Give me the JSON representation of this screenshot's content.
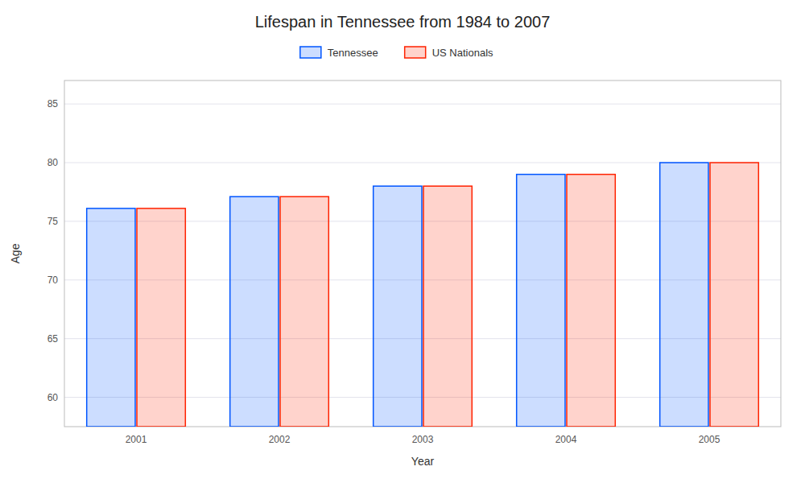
{
  "chart_data": {
    "type": "bar",
    "title": "Lifespan in Tennessee from 1984 to 2007",
    "x_label": "Year",
    "y_label": "Age",
    "categories": [
      "2001",
      "2002",
      "2003",
      "2004",
      "2005"
    ],
    "series": [
      {
        "name": "Tennessee",
        "color": "#0055ff",
        "values": [
          76.1,
          77.1,
          78.0,
          79.0,
          80.0
        ]
      },
      {
        "name": "US Nationals",
        "color": "#ff2200",
        "values": [
          76.1,
          77.1,
          78.0,
          79.0,
          80.0
        ]
      }
    ],
    "ylim": [
      57.5,
      87
    ],
    "yticks": [
      60,
      65,
      70,
      75,
      80,
      85
    ],
    "grid": true,
    "legend": "upper center"
  }
}
